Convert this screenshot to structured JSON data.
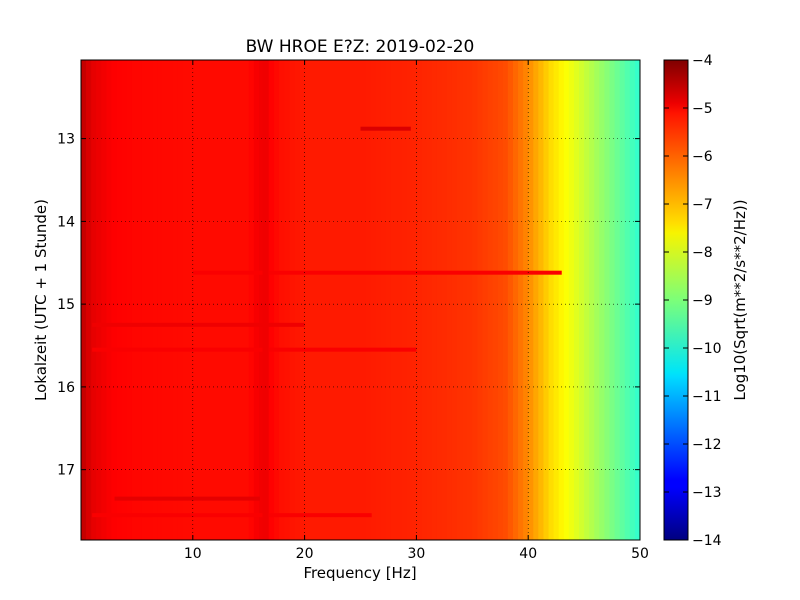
{
  "chart_data": {
    "type": "heatmap",
    "title": "BW HROE E?Z: 2019-02-20",
    "xlabel": "Frequency [Hz]",
    "ylabel": "Lokalzeit (UTC + 1 Stunde)",
    "xlim": [
      0,
      50
    ],
    "ylim": [
      12.05,
      17.85
    ],
    "y_inverted": true,
    "x_ticks": [
      10,
      20,
      30,
      40,
      50
    ],
    "x_tick_labels": [
      "10",
      "20",
      "30",
      "40",
      "50"
    ],
    "y_ticks": [
      13,
      14,
      15,
      16,
      17
    ],
    "y_tick_labels": [
      "13",
      "14",
      "15",
      "16",
      "17"
    ],
    "grid": true,
    "colormap": "jet",
    "colorbar": {
      "label": "Log10(Sqrt(m**2/s**2/Hz))",
      "range": [
        -14,
        -4
      ],
      "ticks": [
        -4,
        -5,
        -6,
        -7,
        -8,
        -9,
        -10,
        -11,
        -12,
        -13,
        -14
      ],
      "tick_labels": [
        "−4",
        "−5",
        "−6",
        "−7",
        "−8",
        "−9",
        "−10",
        "−11",
        "−12",
        "−13",
        "−14"
      ]
    },
    "spectrum_profile": {
      "frequency_hz": [
        0,
        1,
        3,
        5,
        10,
        15,
        16,
        18,
        20,
        25,
        30,
        35,
        38,
        40,
        42,
        44,
        46,
        48,
        50
      ],
      "log10_amplitude": [
        -4.6,
        -5.0,
        -5.25,
        -5.3,
        -5.35,
        -5.35,
        -5.1,
        -5.4,
        -5.5,
        -5.5,
        -5.6,
        -5.75,
        -6.0,
        -6.6,
        -7.4,
        -7.95,
        -8.6,
        -9.2,
        -9.8
      ]
    },
    "features": [
      {
        "kind": "horizontal_band",
        "time": 12.88,
        "freq_range": [
          25,
          29.5
        ],
        "log10_amplitude": -4.9
      },
      {
        "kind": "horizontal_band",
        "time": 14.62,
        "freq_range": [
          10,
          43
        ],
        "log10_amplitude": -5.2
      },
      {
        "kind": "horizontal_band",
        "time": 15.25,
        "freq_range": [
          1,
          20
        ],
        "log10_amplitude": -5.1
      },
      {
        "kind": "horizontal_band",
        "time": 15.55,
        "freq_range": [
          1,
          30
        ],
        "log10_amplitude": -5.2
      },
      {
        "kind": "horizontal_band",
        "time": 17.35,
        "freq_range": [
          3,
          16
        ],
        "log10_amplitude": -5.0
      },
      {
        "kind": "horizontal_band",
        "time": 17.55,
        "freq_range": [
          1,
          26
        ],
        "log10_amplitude": -5.2
      },
      {
        "kind": "vertical_band",
        "freq": 16.5,
        "time_range": [
          12.05,
          17.85
        ],
        "log10_amplitude": -5.1
      }
    ]
  }
}
